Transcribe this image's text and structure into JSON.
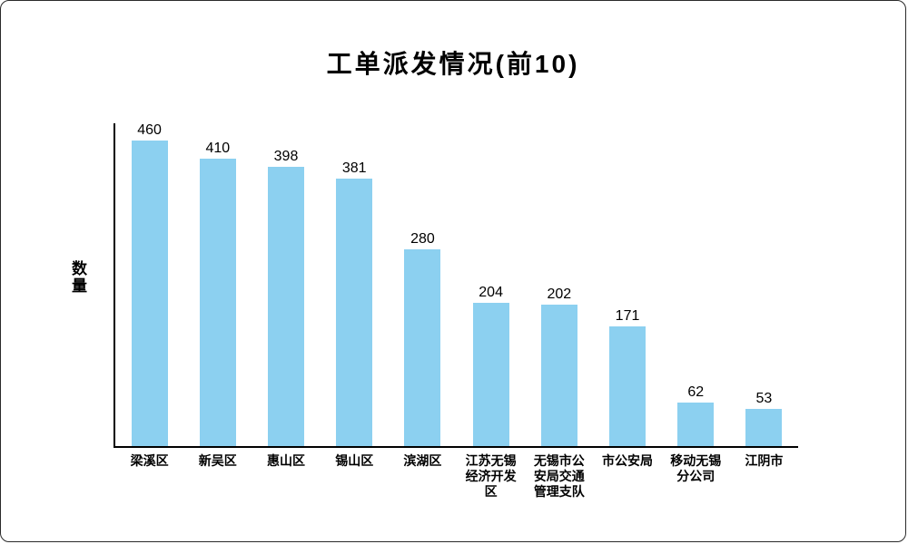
{
  "chart_data": {
    "type": "bar",
    "title": "工单派发情况(前10)",
    "xlabel": "",
    "ylabel": "数量",
    "categories": [
      "梁溪区",
      "新吴区",
      "惠山区",
      "锡山区",
      "滨湖区",
      "江苏无锡经济开发区",
      "无锡市公安局交通管理支队",
      "市公安局",
      "移动无锡分公司",
      "江阴市"
    ],
    "values": [
      460,
      410,
      398,
      381,
      280,
      204,
      202,
      171,
      62,
      53
    ],
    "ylim": [
      0,
      460
    ],
    "grid": false,
    "legend_position": "none",
    "value_labels_shown": true,
    "colors": {
      "bar": "#8CD0F0",
      "axis": "#000000",
      "text": "#000000",
      "frame_border": "#2a2a2a"
    }
  }
}
